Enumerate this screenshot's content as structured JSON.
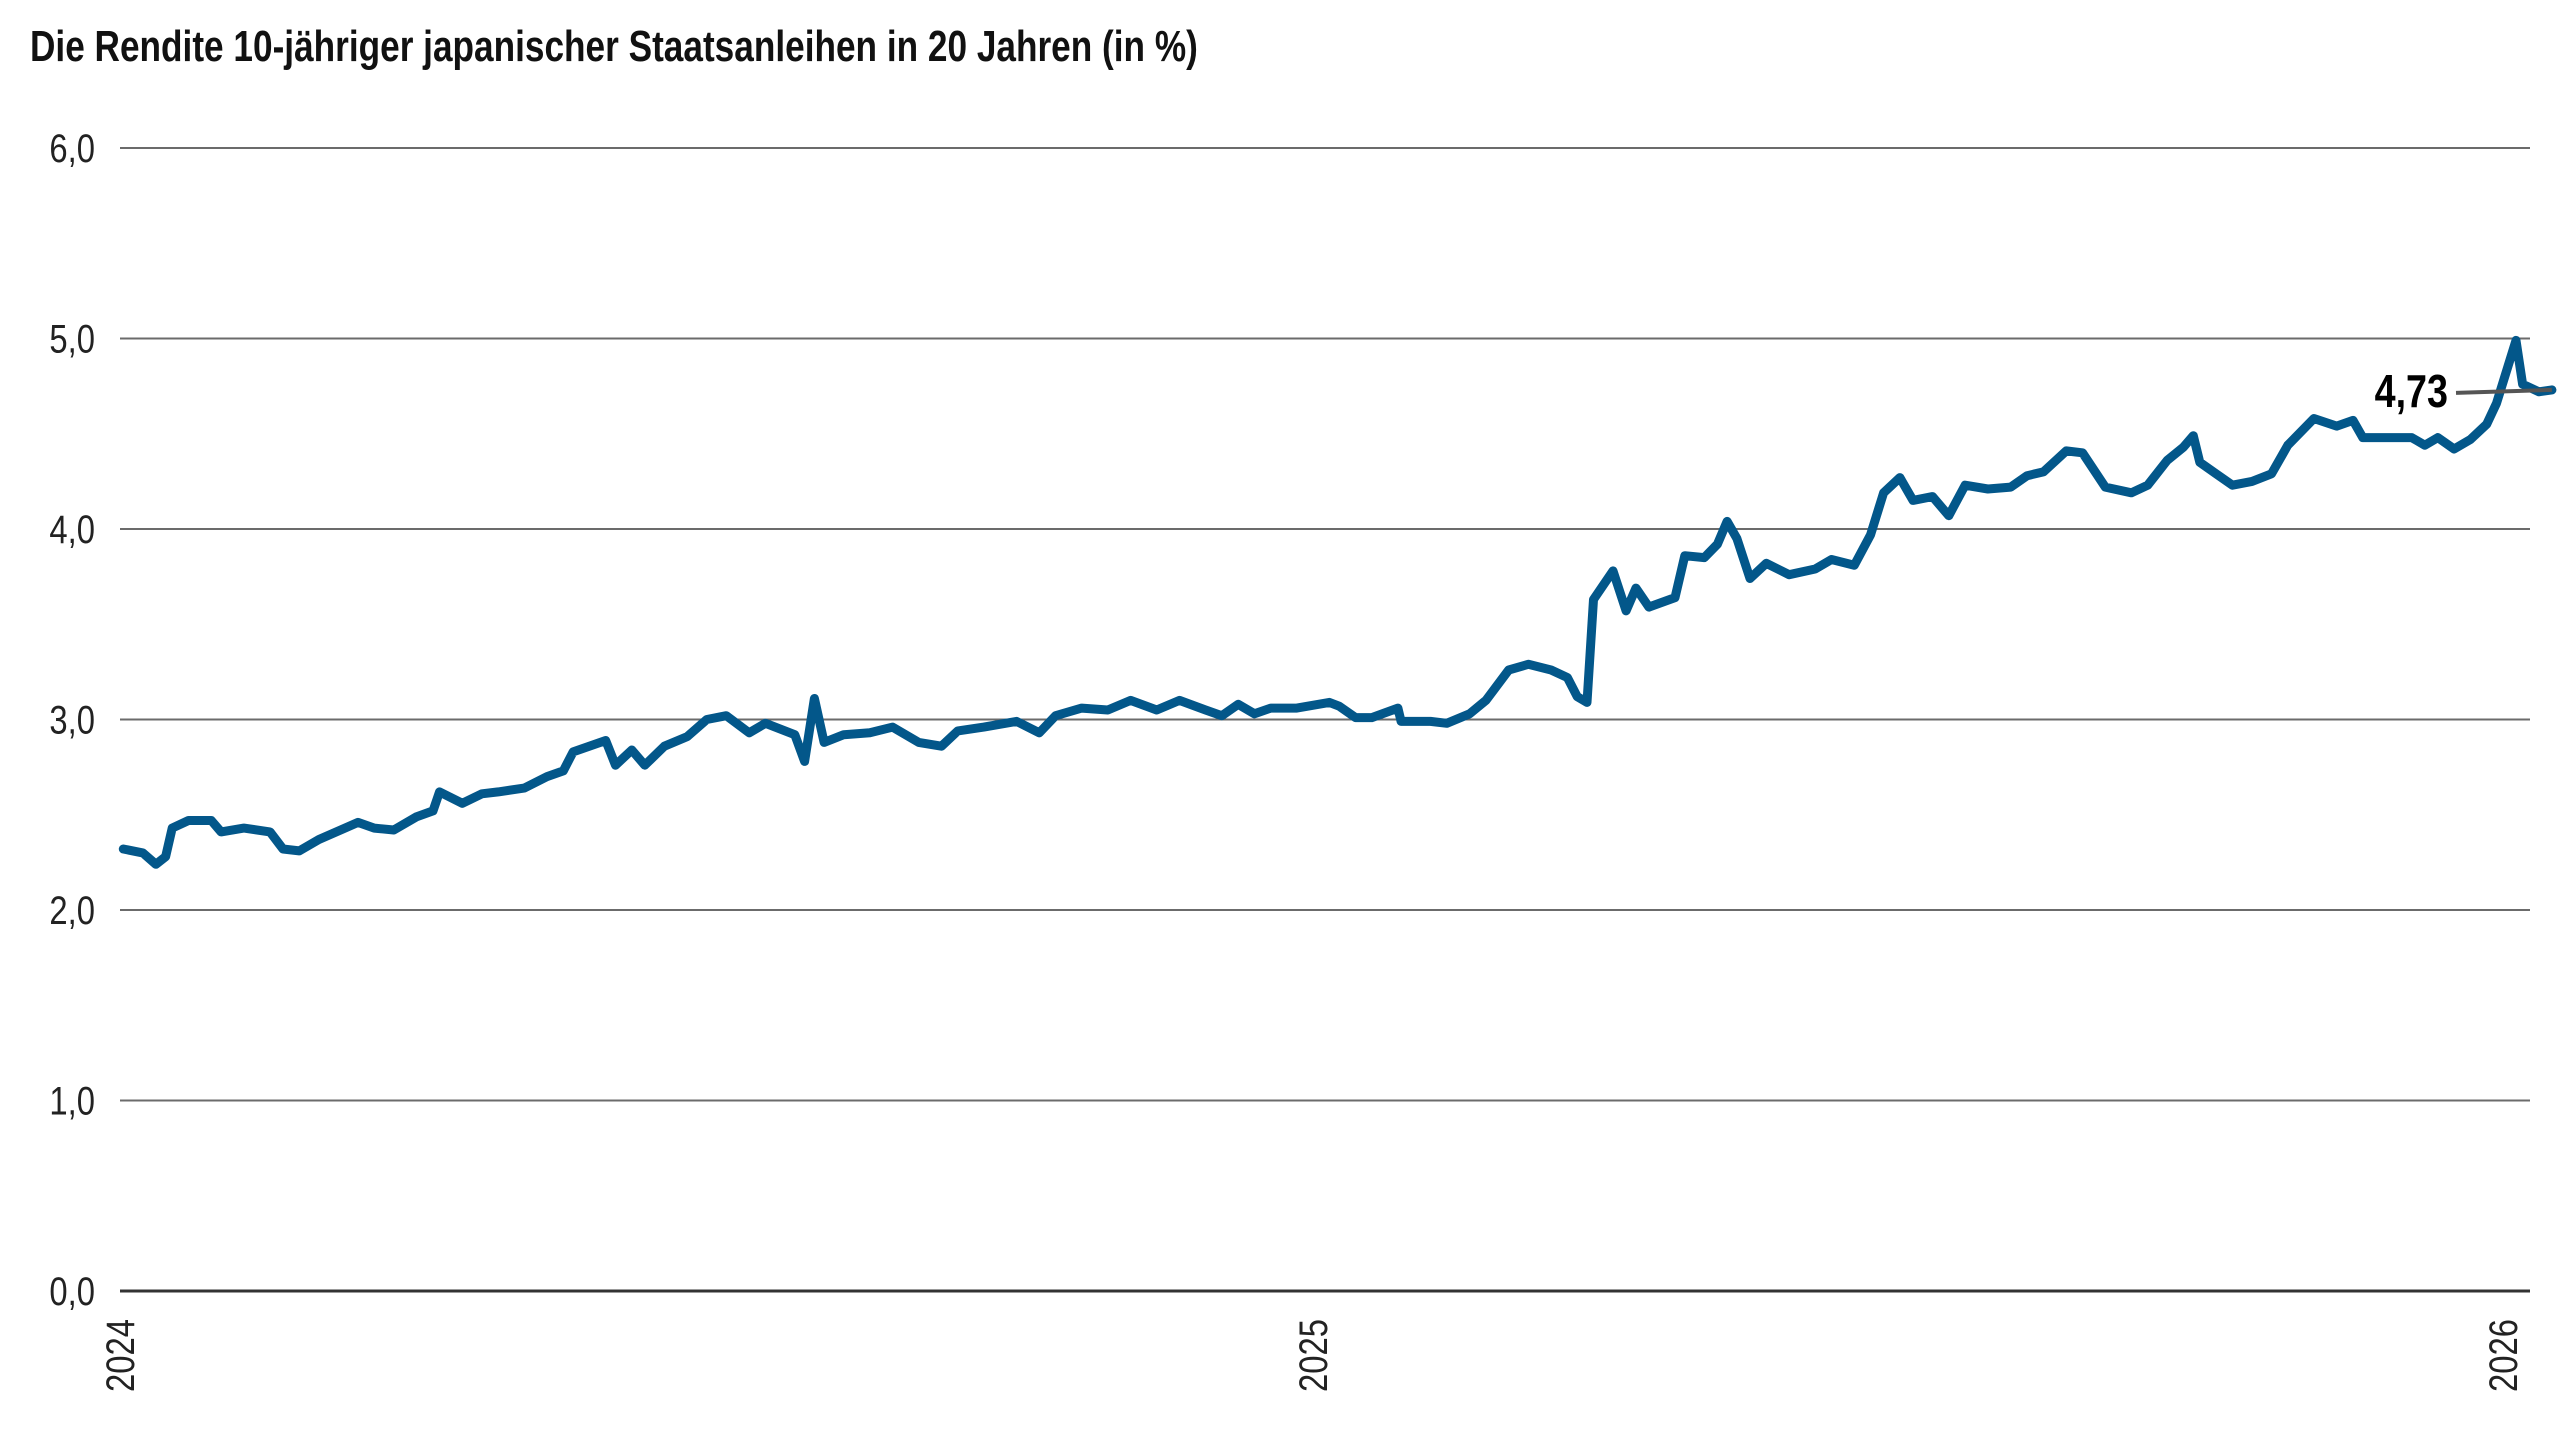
{
  "chart_data": {
    "type": "line",
    "title": "Die Rendite 10-jähriger japanischer Staatsanleihen in 20 Jahren (in %)",
    "xlabel": "",
    "ylabel": "",
    "ylim": [
      0,
      6
    ],
    "yticks": [
      "0,0",
      "1,0",
      "2,0",
      "3,0",
      "4,0",
      "5,0",
      "6,0"
    ],
    "ytick_values": [
      0,
      1,
      2,
      3,
      4,
      5,
      6
    ],
    "xticks": [
      "2024",
      "2025",
      "2026"
    ],
    "xtick_values": [
      "2024-01-01",
      "2025-01-01",
      "2026-01-01"
    ],
    "grid": true,
    "line_color": "#03578a",
    "annotation": {
      "label": "4,73",
      "value": 4.73
    },
    "series": [
      {
        "x": [
          "2024-01-02",
          "2024-01-08",
          "2024-01-12",
          "2024-01-15",
          "2024-01-17",
          "2024-01-22",
          "2024-01-29",
          "2024-02-01",
          "2024-02-08",
          "2024-02-16",
          "2024-02-20",
          "2024-02-25",
          "2024-03-02",
          "2024-03-10",
          "2024-03-14",
          "2024-03-19",
          "2024-03-25",
          "2024-04-01",
          "2024-04-06",
          "2024-04-08",
          "2024-04-15",
          "2024-04-21",
          "2024-04-26",
          "2024-05-04",
          "2024-05-11",
          "2024-05-16",
          "2024-05-19",
          "2024-05-29",
          "2024-06-01",
          "2024-06-06",
          "2024-06-10",
          "2024-06-16",
          "2024-06-23",
          "2024-06-29",
          "2024-07-05",
          "2024-07-12",
          "2024-07-17",
          "2024-07-26",
          "2024-07-29",
          "2024-08-01",
          "2024-08-04",
          "2024-08-10",
          "2024-08-18",
          "2024-08-25",
          "2024-09-02",
          "2024-09-09",
          "2024-09-14",
          "2024-09-22",
          "2024-10-02",
          "2024-10-09",
          "2024-10-14",
          "2024-10-22",
          "2024-10-30",
          "2024-11-06",
          "2024-11-14",
          "2024-11-21",
          "2024-11-29",
          "2024-12-04",
          "2024-12-09",
          "2024-12-14",
          "2024-12-19",
          "2024-12-27",
          "2025-01-06",
          "2025-01-09",
          "2025-01-14",
          "2025-01-19",
          "2025-01-27",
          "2025-01-28",
          "2025-02-06",
          "2025-02-11",
          "2025-02-18",
          "2025-02-23",
          "2025-03-02",
          "2025-03-08",
          "2025-03-15",
          "2025-03-20",
          "2025-03-23",
          "2025-03-26",
          "2025-03-28",
          "2025-04-03",
          "2025-04-07",
          "2025-04-10",
          "2025-04-14",
          "2025-04-22",
          "2025-04-25",
          "2025-05-01",
          "2025-05-05",
          "2025-05-08",
          "2025-05-11",
          "2025-05-15",
          "2025-05-20",
          "2025-05-27",
          "2025-06-04",
          "2025-06-09",
          "2025-06-16",
          "2025-06-21",
          "2025-06-25",
          "2025-06-30",
          "2025-07-04",
          "2025-07-10",
          "2025-07-15",
          "2025-07-20",
          "2025-07-27",
          "2025-08-03",
          "2025-08-08",
          "2025-08-13",
          "2025-08-20",
          "2025-08-25",
          "2025-09-01",
          "2025-09-09",
          "2025-09-14",
          "2025-09-20",
          "2025-09-25",
          "2025-09-28",
          "2025-09-30",
          "2025-10-05",
          "2025-10-10",
          "2025-10-16",
          "2025-10-22",
          "2025-10-27",
          "2025-11-04",
          "2025-11-11",
          "2025-11-16",
          "2025-11-19",
          "2025-11-27",
          "2025-12-04",
          "2025-12-08",
          "2025-12-12",
          "2025-12-17",
          "2025-12-22",
          "2025-12-27",
          "2025-12-30",
          "2026-01-05",
          "2026-01-07",
          "2026-01-12",
          "2026-01-16"
        ],
        "y": [
          2.32,
          2.3,
          2.24,
          2.28,
          2.43,
          2.47,
          2.47,
          2.41,
          2.43,
          2.41,
          2.32,
          2.31,
          2.37,
          2.43,
          2.46,
          2.43,
          2.42,
          2.49,
          2.52,
          2.62,
          2.56,
          2.61,
          2.62,
          2.64,
          2.7,
          2.73,
          2.83,
          2.89,
          2.76,
          2.84,
          2.76,
          2.86,
          2.91,
          3.0,
          3.02,
          2.93,
          2.98,
          2.92,
          2.78,
          3.11,
          2.88,
          2.92,
          2.93,
          2.96,
          2.88,
          2.86,
          2.94,
          2.96,
          2.99,
          2.93,
          3.02,
          3.06,
          3.05,
          3.1,
          3.05,
          3.1,
          3.05,
          3.02,
          3.08,
          3.03,
          3.06,
          3.06,
          3.09,
          3.07,
          3.01,
          3.01,
          3.06,
          2.99,
          2.99,
          2.98,
          3.03,
          3.1,
          3.26,
          3.29,
          3.26,
          3.22,
          3.12,
          3.09,
          3.63,
          3.78,
          3.57,
          3.69,
          3.59,
          3.64,
          3.86,
          3.85,
          3.92,
          4.04,
          3.95,
          3.74,
          3.82,
          3.76,
          3.79,
          3.84,
          3.81,
          3.97,
          4.19,
          4.27,
          4.15,
          4.17,
          4.07,
          4.23,
          4.21,
          4.22,
          4.28,
          4.3,
          4.41,
          4.4,
          4.22,
          4.19,
          4.23,
          4.36,
          4.43,
          4.49,
          4.35,
          4.29,
          4.23,
          4.25,
          4.29,
          4.44,
          4.58,
          4.54,
          4.57,
          4.48,
          4.48,
          4.48,
          4.44,
          4.48,
          4.42,
          4.47,
          4.55,
          4.66,
          4.99,
          4.76,
          4.72,
          4.73
        ]
      }
    ]
  }
}
